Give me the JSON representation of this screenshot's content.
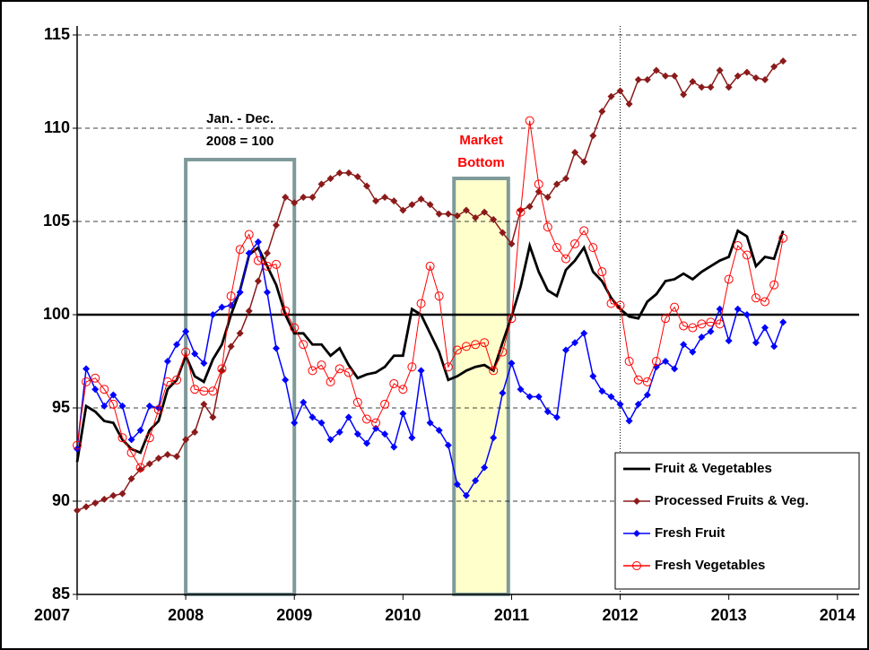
{
  "chart_data": {
    "type": "line",
    "x": [
      2007,
      2007.083,
      2007.167,
      2007.25,
      2007.333,
      2007.417,
      2007.5,
      2007.583,
      2007.667,
      2007.75,
      2007.833,
      2007.917,
      2008,
      2008.083,
      2008.167,
      2008.25,
      2008.333,
      2008.417,
      2008.5,
      2008.583,
      2008.667,
      2008.75,
      2008.833,
      2008.917,
      2009,
      2009.083,
      2009.167,
      2009.25,
      2009.333,
      2009.417,
      2009.5,
      2009.583,
      2009.667,
      2009.75,
      2009.833,
      2009.917,
      2010,
      2010.083,
      2010.167,
      2010.25,
      2010.333,
      2010.417,
      2010.5,
      2010.583,
      2010.667,
      2010.75,
      2010.833,
      2010.917,
      2011,
      2011.083,
      2011.167,
      2011.25,
      2011.333,
      2011.417,
      2011.5,
      2011.583,
      2011.667,
      2011.75,
      2011.833,
      2011.917,
      2012,
      2012.083,
      2012.167,
      2012.25,
      2012.333,
      2012.417,
      2012.5,
      2012.583,
      2012.667,
      2012.75,
      2012.833,
      2012.917,
      2013,
      2013.083,
      2013.167,
      2013.25,
      2013.333,
      2013.417,
      2013.5
    ],
    "series": [
      {
        "name": "Fruit & Vegetables",
        "color": "#000000",
        "marker": "none",
        "values": [
          92.1,
          95.1,
          94.8,
          94.3,
          94.2,
          93.3,
          92.8,
          92.6,
          93.8,
          94.3,
          96.0,
          96.5,
          97.8,
          96.7,
          96.4,
          97.6,
          98.4,
          100.0,
          101.3,
          103.2,
          103.6,
          102.6,
          101.6,
          100.0,
          99.0,
          99.0,
          98.4,
          98.4,
          97.8,
          98.2,
          97.3,
          96.6,
          96.8,
          96.9,
          97.2,
          97.8,
          97.8,
          100.3,
          100.0,
          99.0,
          98.0,
          96.5,
          96.7,
          97.0,
          97.2,
          97.3,
          97.0,
          98.5,
          99.9,
          101.5,
          103.7,
          102.3,
          101.3,
          101.0,
          102.4,
          102.9,
          103.6,
          102.3,
          101.8,
          100.9,
          100.3,
          99.9,
          99.8,
          100.7,
          101.1,
          101.8,
          101.9,
          102.2,
          101.9,
          102.3,
          102.6,
          102.9,
          103.1,
          104.5,
          104.2,
          102.6,
          103.1,
          103.0,
          104.5
        ]
      },
      {
        "name": "Processed Fruits & Veg.",
        "color": "#8b1a1a",
        "marker": "diamond",
        "values": [
          89.5,
          89.7,
          89.9,
          90.1,
          90.3,
          90.4,
          91.2,
          91.7,
          92.0,
          92.3,
          92.5,
          92.4,
          93.3,
          93.7,
          95.2,
          94.5,
          97.0,
          98.3,
          99.0,
          100.2,
          101.8,
          103.3,
          104.8,
          106.3,
          106.0,
          106.3,
          106.3,
          107.0,
          107.3,
          107.6,
          107.6,
          107.4,
          106.9,
          106.1,
          106.3,
          106.1,
          105.6,
          105.9,
          106.2,
          105.9,
          105.4,
          105.4,
          105.3,
          105.6,
          105.2,
          105.5,
          105.1,
          104.4,
          103.8,
          105.6,
          105.8,
          106.6,
          106.3,
          107.0,
          107.3,
          108.7,
          108.2,
          109.6,
          110.9,
          111.7,
          112.0,
          111.3,
          112.6,
          112.6,
          113.1,
          112.8,
          112.8,
          111.8,
          112.5,
          112.2,
          112.2,
          113.1,
          112.2,
          112.8,
          113.0,
          112.7,
          112.6,
          113.3,
          113.6
        ]
      },
      {
        "name": "Fresh Fruit",
        "color": "#0000ff",
        "marker": "diamond",
        "values": [
          92.8,
          97.1,
          96.0,
          95.1,
          95.7,
          95.1,
          93.3,
          93.8,
          95.1,
          95.0,
          97.5,
          98.4,
          99.1,
          97.9,
          97.4,
          100.0,
          100.4,
          100.5,
          101.2,
          103.3,
          103.9,
          101.2,
          98.2,
          96.5,
          94.2,
          95.3,
          94.5,
          94.2,
          93.3,
          93.7,
          94.5,
          93.6,
          93.1,
          93.9,
          93.6,
          92.9,
          94.7,
          93.4,
          97.0,
          94.2,
          93.8,
          93.0,
          90.9,
          90.3,
          91.1,
          91.8,
          93.4,
          95.8,
          97.4,
          96.0,
          95.6,
          95.6,
          94.8,
          94.5,
          98.1,
          98.5,
          99.0,
          96.7,
          95.9,
          95.6,
          95.2,
          94.3,
          95.2,
          95.7,
          97.2,
          97.5,
          97.1,
          98.4,
          98.0,
          98.8,
          99.1,
          100.3,
          98.6,
          100.3,
          100.0,
          98.5,
          99.3,
          98.3,
          99.6
        ]
      },
      {
        "name": "Fresh Vegetables",
        "color": "#ff0000",
        "marker": "circle",
        "values": [
          93.0,
          96.4,
          96.6,
          96.0,
          95.2,
          93.4,
          92.6,
          91.8,
          93.4,
          94.9,
          96.4,
          96.5,
          98.0,
          96.0,
          95.9,
          95.9,
          97.1,
          101.0,
          103.5,
          104.3,
          102.9,
          102.6,
          102.7,
          100.2,
          99.3,
          98.4,
          97.0,
          97.3,
          96.4,
          97.1,
          96.9,
          95.3,
          94.4,
          94.2,
          95.2,
          96.3,
          96.0,
          97.2,
          100.6,
          102.6,
          101.0,
          97.2,
          98.1,
          98.3,
          98.4,
          98.5,
          97.0,
          98.0,
          99.8,
          105.5,
          110.4,
          107.0,
          104.7,
          103.6,
          103.0,
          103.8,
          104.5,
          103.6,
          102.3,
          100.6,
          100.5,
          97.5,
          96.5,
          96.4,
          97.5,
          99.8,
          100.4,
          99.4,
          99.3,
          99.5,
          99.6,
          99.5,
          101.9,
          103.7,
          103.2,
          100.9,
          100.7,
          101.6,
          104.1
        ]
      }
    ],
    "xlim": [
      2007,
      2014.2
    ],
    "xticks": [
      2007,
      2008,
      2009,
      2010,
      2011,
      2012,
      2013,
      2014
    ],
    "ylim": [
      85,
      115
    ],
    "yticks": [
      85,
      90,
      95,
      100,
      105,
      110,
      115
    ],
    "grid": true,
    "reference_line": 100,
    "vertical_line": 2012,
    "legend": "lower right",
    "highlights": [
      {
        "lines": [
          "Jan. - Dec.",
          "2008 = 100"
        ],
        "x": [
          2008,
          2009
        ],
        "fill": "none",
        "text_color": "#000000"
      },
      {
        "lines": [
          "Market",
          "Bottom"
        ],
        "x": [
          2010.47,
          2010.97
        ],
        "fill": "#ffffcc",
        "text_color": "#ff0000"
      }
    ]
  }
}
